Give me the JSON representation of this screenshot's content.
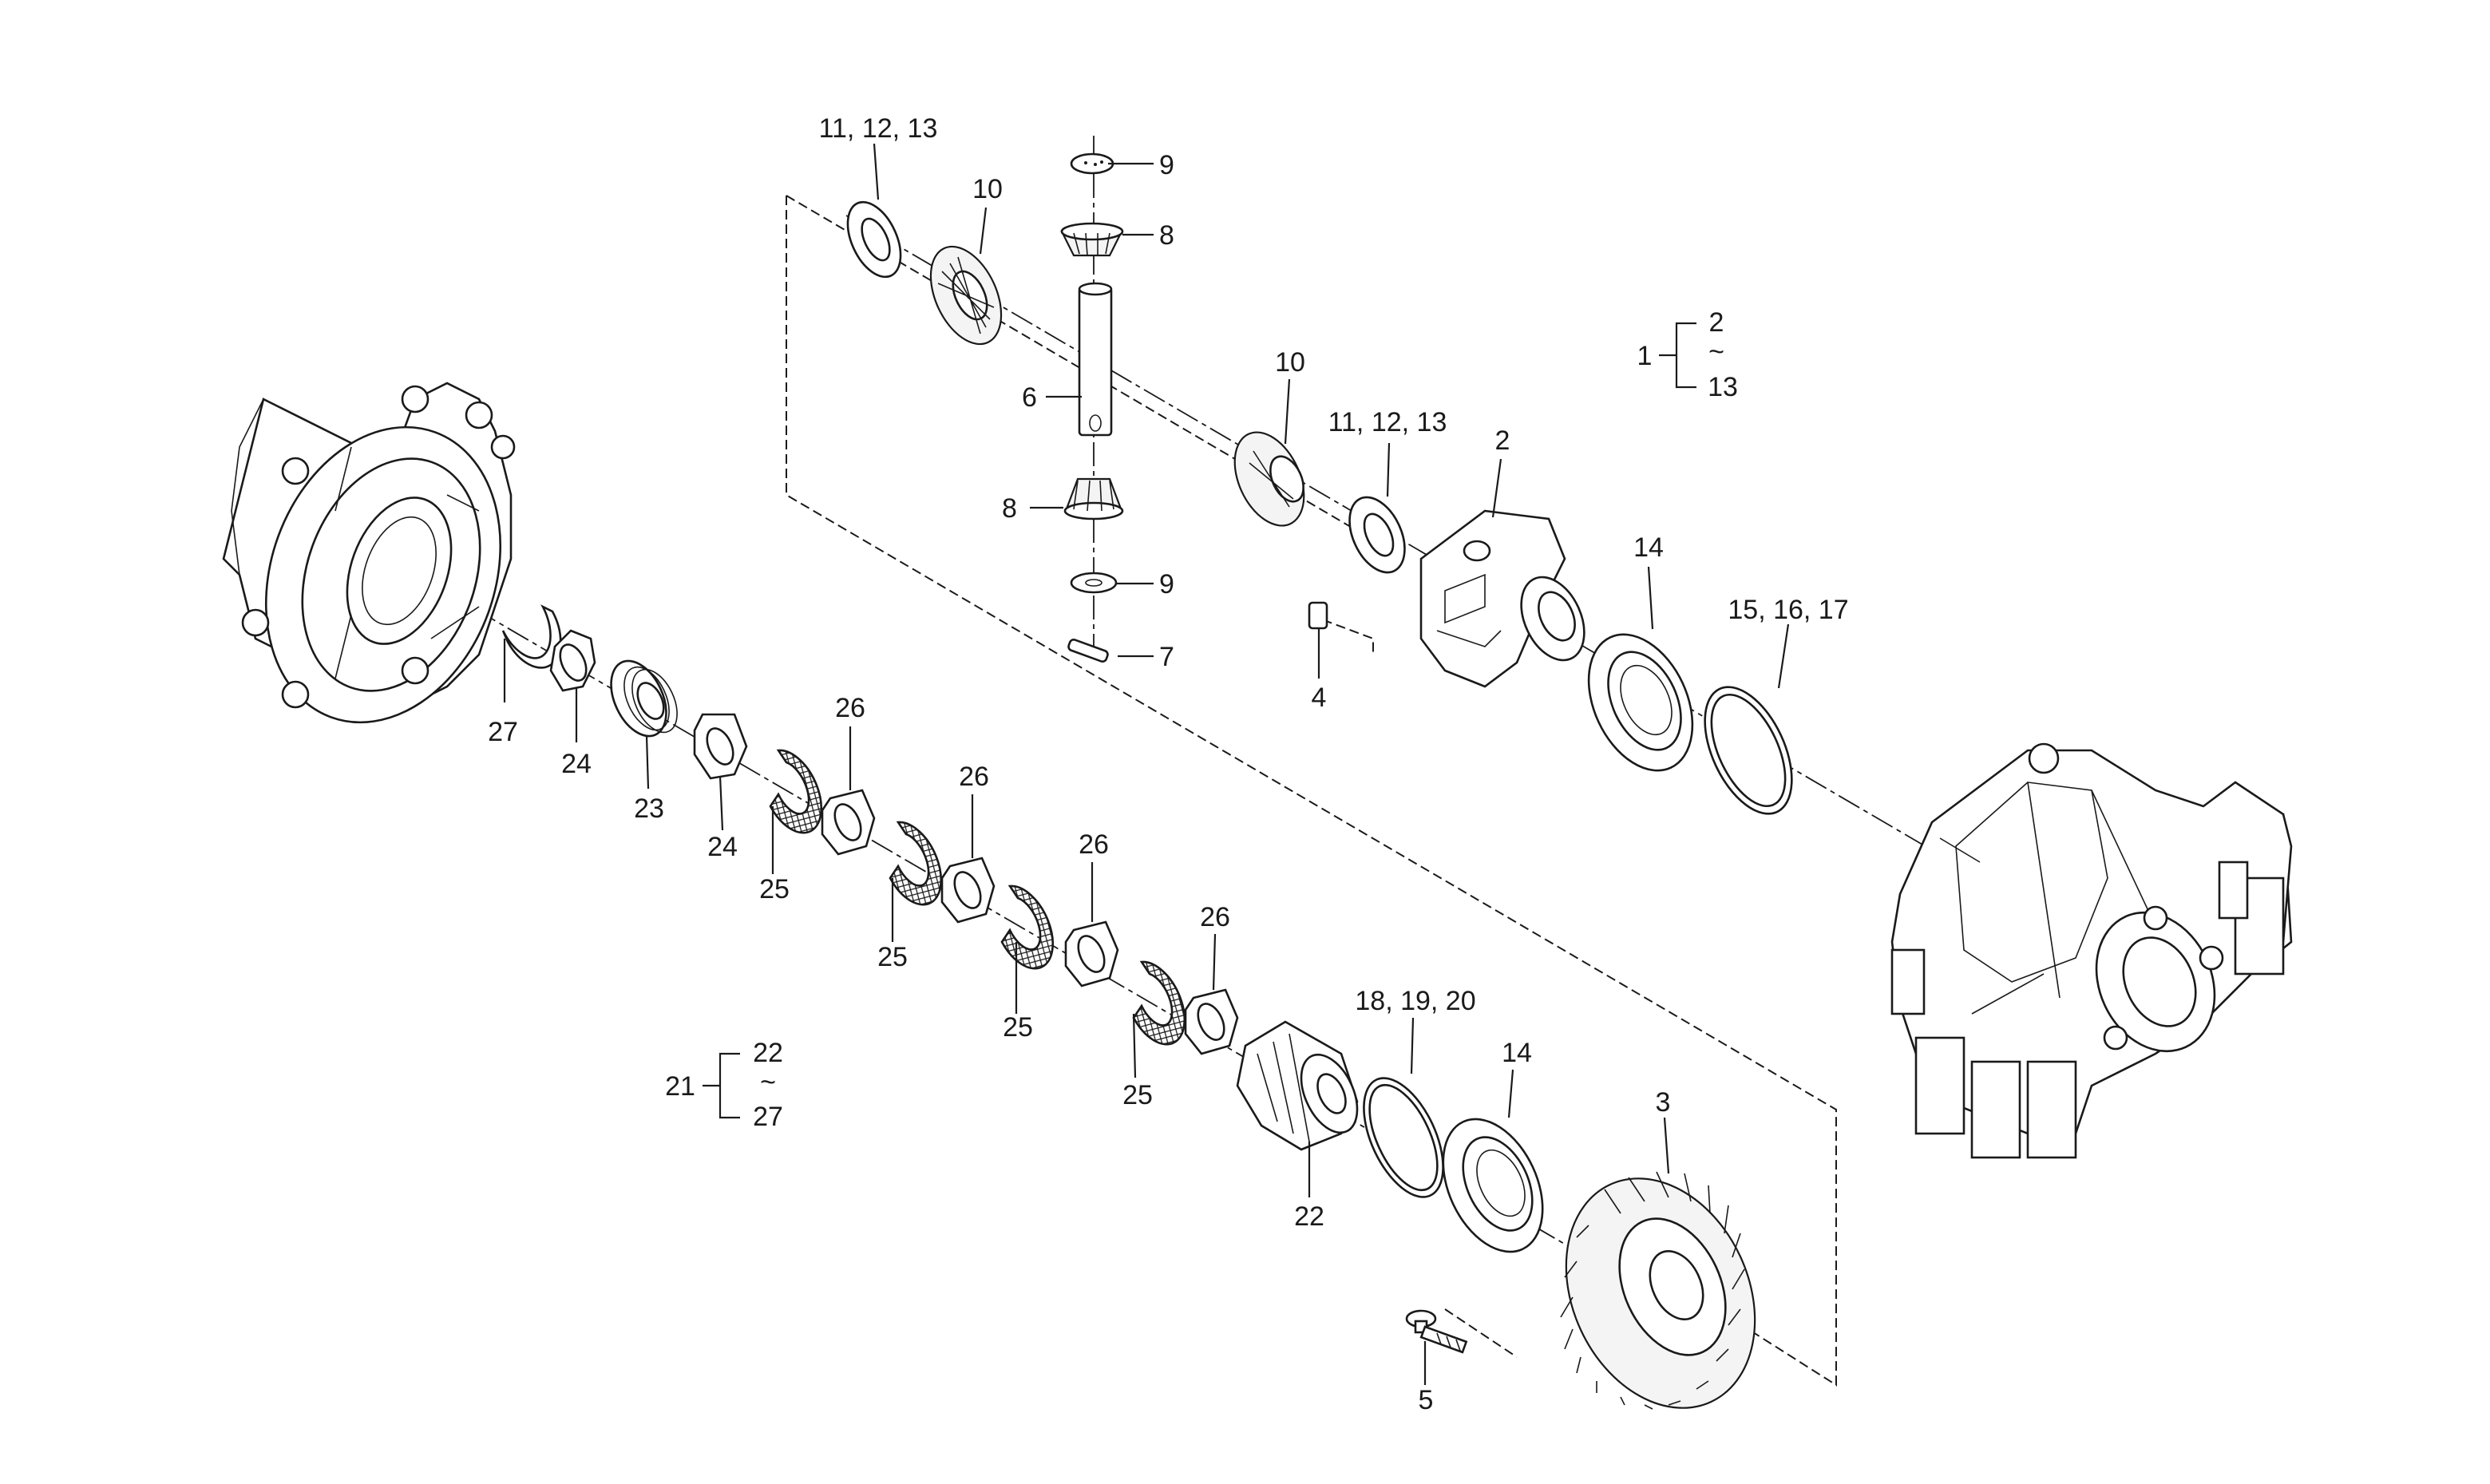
{
  "callouts": {
    "c_11_12_13_top": "11, 12, 13",
    "c_10_top": "10",
    "c_9_top": "9",
    "c_8_top": "8",
    "c_6": "6",
    "c_8_bottom": "8",
    "c_9_bottom": "9",
    "c_7": "7",
    "c_10_mid": "10",
    "c_11_12_13_mid": "11, 12, 13",
    "c_2": "2",
    "c_4": "4",
    "c_14_top": "14",
    "c_15_16_17": "15, 16, 17",
    "c_27": "27",
    "c_24_left": "24",
    "c_23": "23",
    "c_24_right": "24",
    "c_25_a": "25",
    "c_26_a": "26",
    "c_25_b": "25",
    "c_26_b": "26",
    "c_25_c": "25",
    "c_26_c": "26",
    "c_25_d": "25",
    "c_26_d": "26",
    "c_18_19_20": "18, 19, 20",
    "c_14_bottom": "14",
    "c_3": "3",
    "c_22": "22",
    "c_5": "5"
  },
  "groups": {
    "assembly_1": {
      "parent": "1",
      "from": "2",
      "tilde": "~",
      "to": "13"
    },
    "assembly_21": {
      "parent": "21",
      "from": "22",
      "tilde": "~",
      "to": "27"
    }
  }
}
